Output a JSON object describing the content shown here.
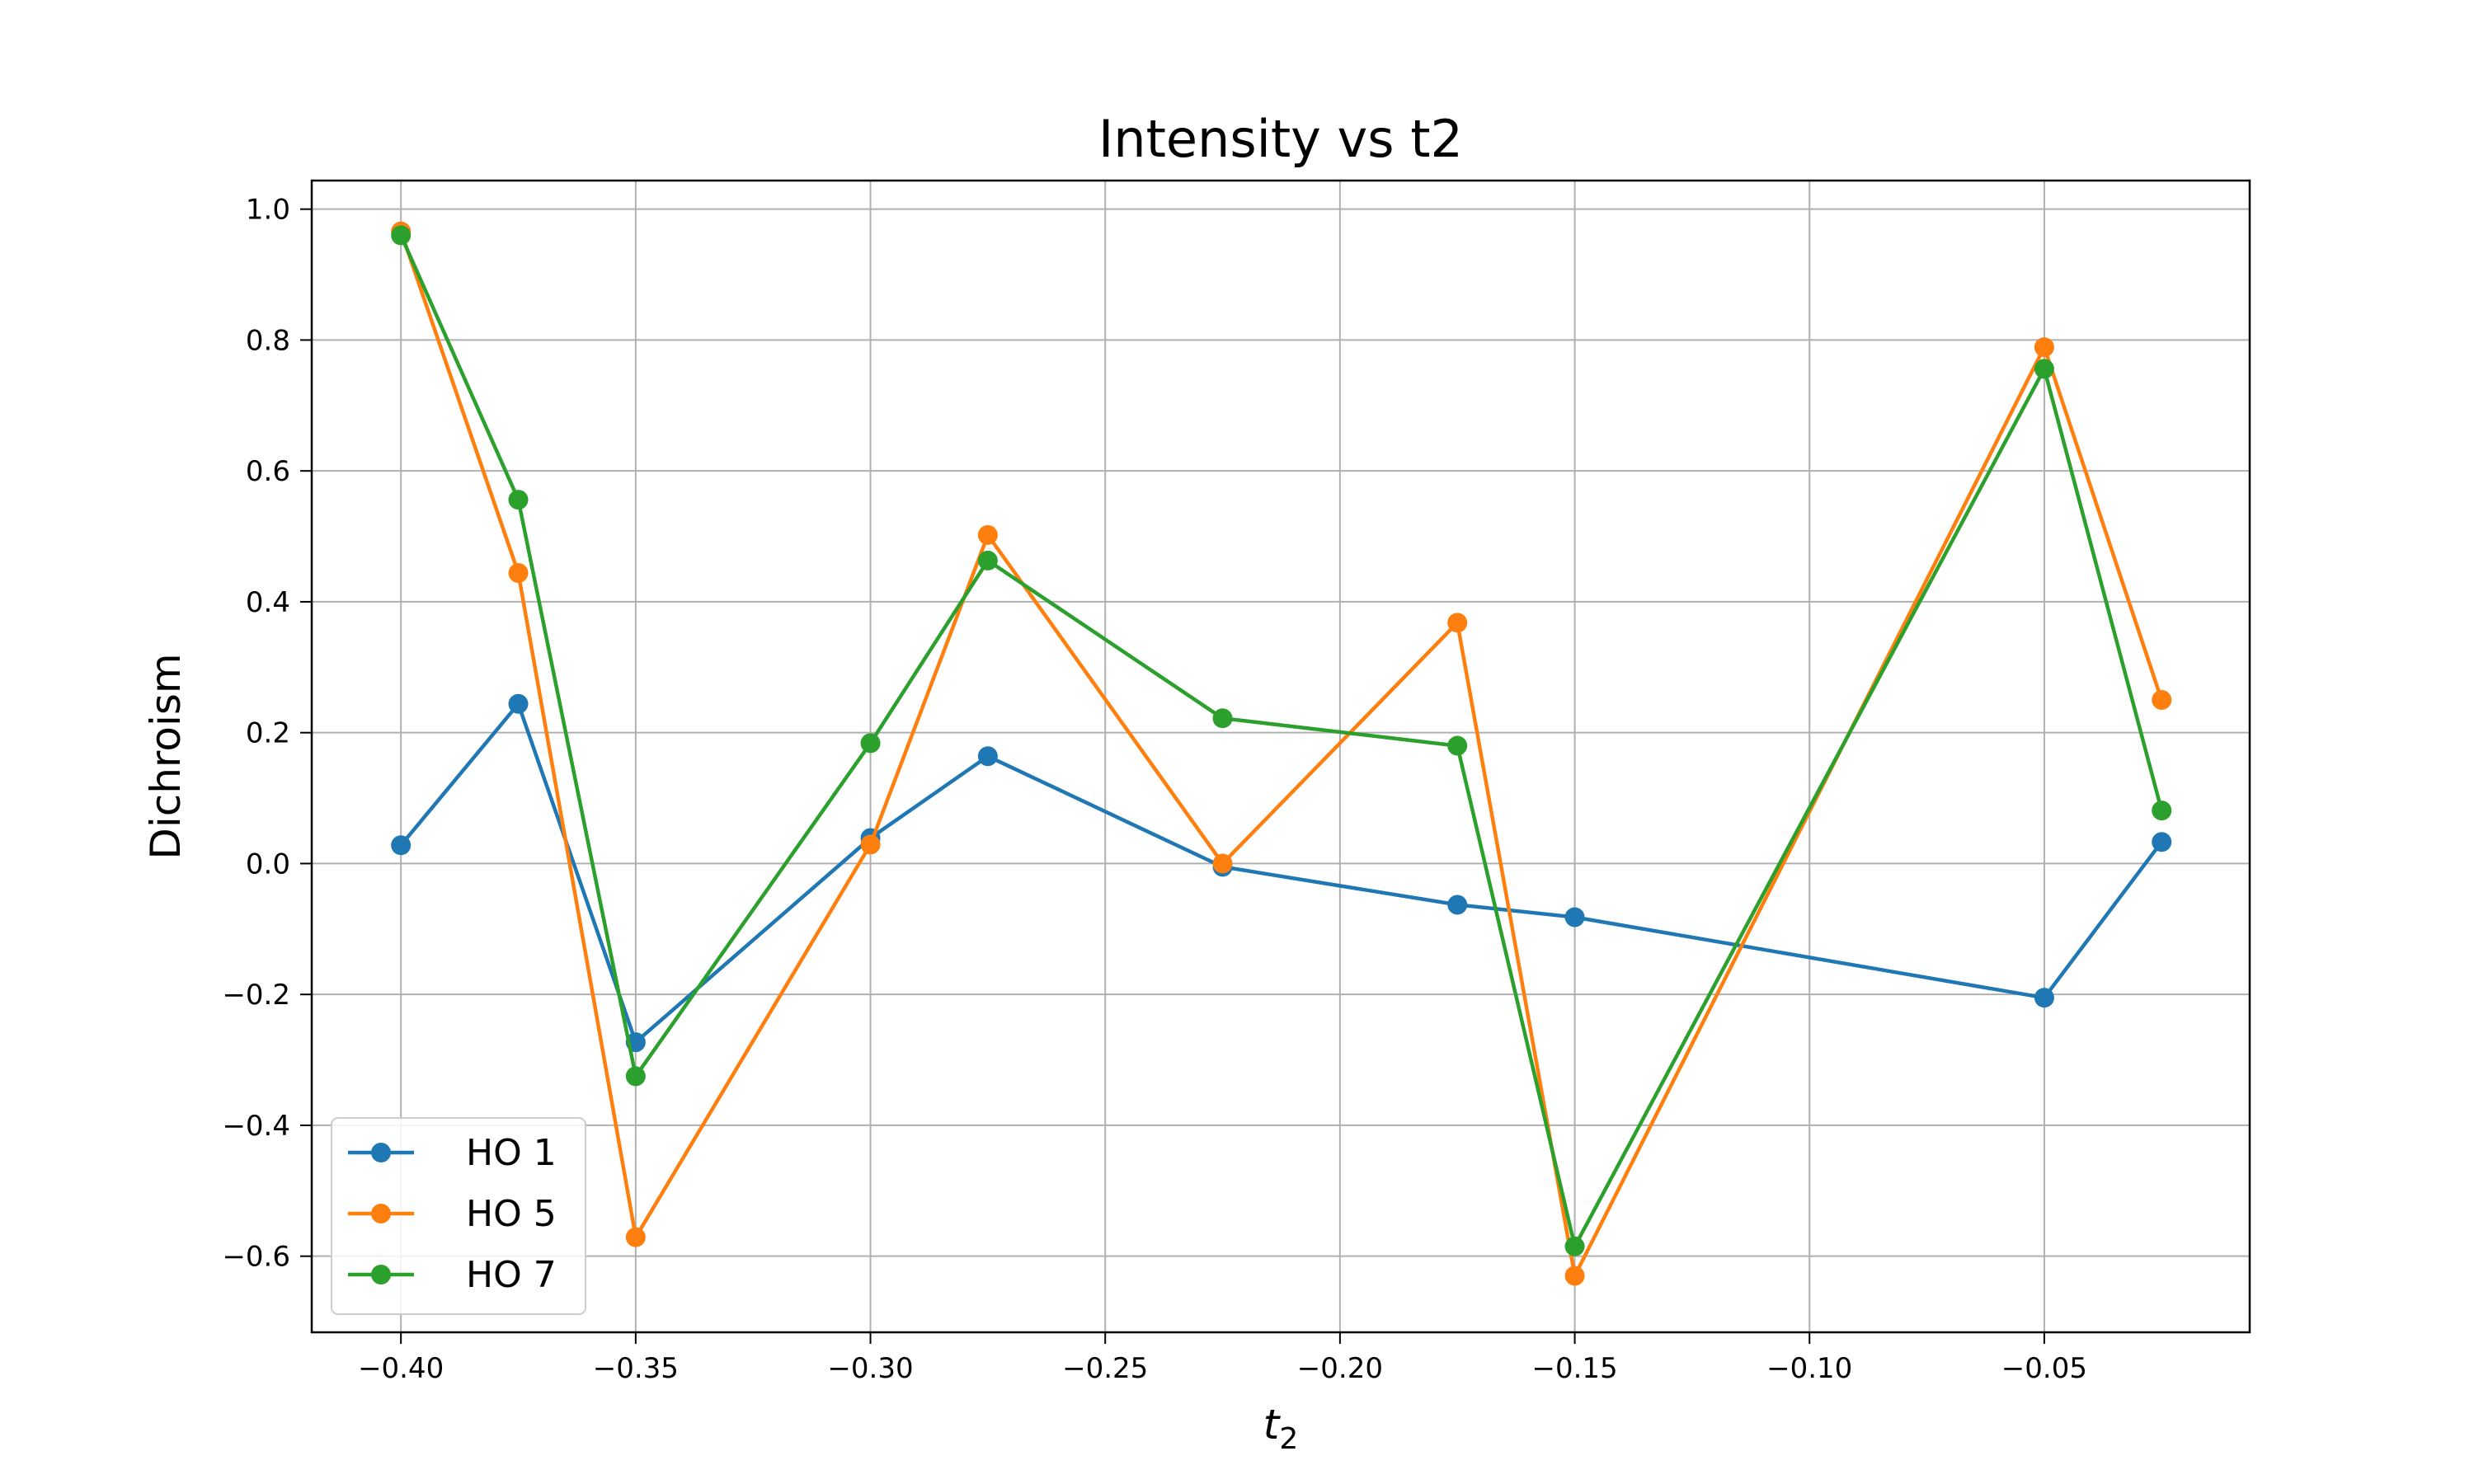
{
  "chart_data": {
    "type": "line",
    "title": "Intensity vs t2",
    "xlabel": "t",
    "xlabel_subscript": "2",
    "ylabel": "Dichroism",
    "xlim": [
      -0.419,
      -0.00625
    ],
    "ylim": [
      -0.7163,
      1.0437
    ],
    "xticks": [
      -0.4,
      -0.35,
      -0.3,
      -0.25,
      -0.2,
      -0.15,
      -0.1,
      -0.05
    ],
    "xtick_labels": [
      "−0.40",
      "−0.35",
      "−0.30",
      "−0.25",
      "−0.20",
      "−0.15",
      "−0.10",
      "−0.05"
    ],
    "yticks": [
      -0.6,
      -0.4,
      -0.2,
      0.0,
      0.2,
      0.4,
      0.6,
      0.8,
      1.0
    ],
    "ytick_labels": [
      "−0.6",
      "−0.4",
      "−0.2",
      "0.0",
      "0.2",
      "0.4",
      "0.6",
      "0.8",
      "1.0"
    ],
    "grid": true,
    "legend_position": "lower-left",
    "x": [
      -0.4,
      -0.375,
      -0.35,
      -0.3,
      -0.275,
      -0.225,
      -0.175,
      -0.15,
      -0.05,
      -0.025
    ],
    "series": [
      {
        "name": "HO 1",
        "color": "#1f77b4",
        "values": [
          0.028,
          0.244,
          -0.273,
          0.039,
          0.164,
          -0.005,
          -0.063,
          -0.082,
          -0.205,
          0.033
        ]
      },
      {
        "name": "HO 5",
        "color": "#ff7f0e",
        "values": [
          0.966,
          0.444,
          -0.571,
          0.029,
          0.502,
          0.0,
          0.368,
          -0.63,
          0.789,
          0.25
        ]
      },
      {
        "name": "HO 7",
        "color": "#2ca02c",
        "values": [
          0.96,
          0.556,
          -0.325,
          0.184,
          0.463,
          0.222,
          0.18,
          -0.585,
          0.756,
          0.081
        ]
      }
    ]
  }
}
